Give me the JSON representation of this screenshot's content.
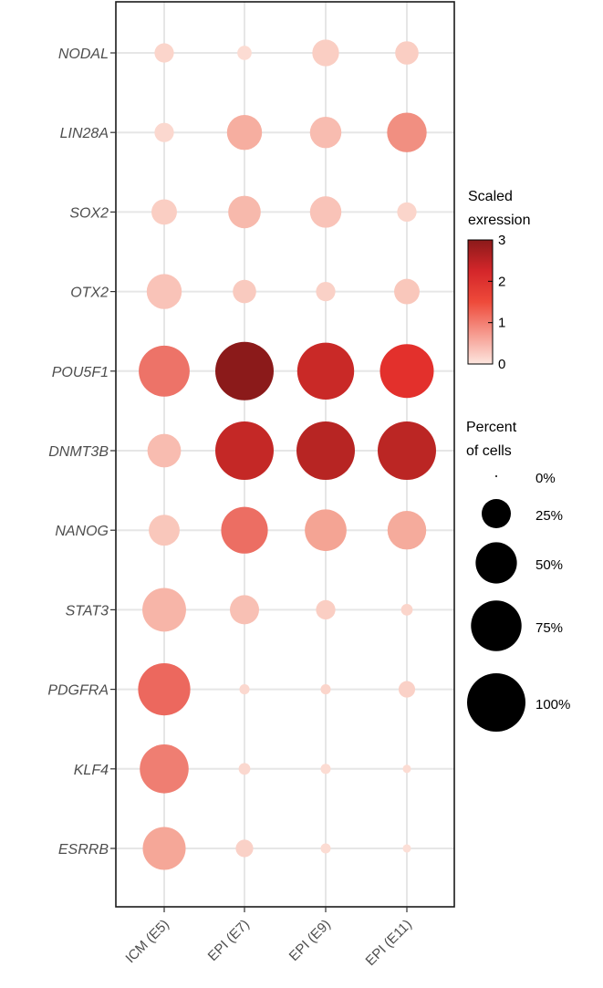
{
  "chart_data": {
    "type": "dotplot",
    "genes": [
      "NODAL",
      "LIN28A",
      "SOX2",
      "OTX2",
      "POU5F1",
      "DNMT3B",
      "NANOG",
      "STAT3",
      "PDGFRA",
      "KLF4",
      "ESRRB"
    ],
    "groups": [
      "ICM (E5)",
      "EPI (E7)",
      "EPI (E9)",
      "EPI (E11)"
    ],
    "percent_of_cells": [
      [
        11,
        6,
        21,
        16
      ],
      [
        11,
        36,
        29,
        46
      ],
      [
        19,
        31,
        29,
        11
      ],
      [
        36,
        16,
        11,
        19
      ],
      [
        76,
        100,
        95,
        85
      ],
      [
        33,
        100,
        100,
        100
      ],
      [
        28,
        64,
        51,
        44
      ],
      [
        56,
        25,
        11,
        4
      ],
      [
        80,
        3,
        3,
        8
      ],
      [
        70,
        4,
        3,
        2
      ],
      [
        54,
        9,
        3,
        2
      ]
    ],
    "scaled_expression": [
      [
        0.25,
        0.15,
        0.35,
        0.35
      ],
      [
        0.2,
        0.8,
        0.6,
        1.15
      ],
      [
        0.35,
        0.65,
        0.5,
        0.25
      ],
      [
        0.5,
        0.4,
        0.3,
        0.45
      ],
      [
        1.4,
        3.0,
        2.3,
        2.0
      ],
      [
        0.6,
        2.35,
        2.5,
        2.45
      ],
      [
        0.45,
        1.45,
        0.95,
        0.85
      ],
      [
        0.7,
        0.55,
        0.35,
        0.25
      ],
      [
        1.5,
        0.2,
        0.25,
        0.3
      ],
      [
        1.3,
        0.2,
        0.15,
        0.15
      ],
      [
        0.9,
        0.3,
        0.15,
        0.1
      ]
    ],
    "color_legend": {
      "title": [
        "Scaled",
        "exression"
      ],
      "range": [
        0,
        3
      ],
      "ticks": [
        "0",
        "1",
        "2",
        "3"
      ],
      "low_color": "#fde6df",
      "high_color": "#8b1a1a",
      "mid_color": "#e8312e"
    },
    "size_legend": {
      "title": [
        "Percent",
        "of cells"
      ],
      "entries": [
        {
          "value": 0,
          "label": "0%"
        },
        {
          "value": 25,
          "label": "25%"
        },
        {
          "value": 50,
          "label": "50%"
        },
        {
          "value": 75,
          "label": "75%"
        },
        {
          "value": 100,
          "label": "100%"
        }
      ]
    }
  }
}
